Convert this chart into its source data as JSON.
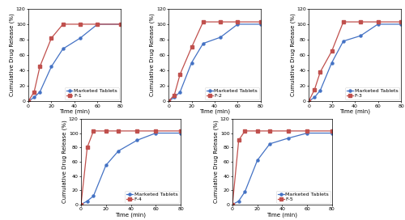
{
  "x": [
    0,
    5,
    10,
    20,
    30,
    45,
    60,
    80
  ],
  "marketed_y": [
    0,
    5,
    12,
    45,
    68,
    82,
    100,
    100
  ],
  "f1_y": [
    0,
    12,
    45,
    82,
    100,
    100,
    100,
    100
  ],
  "f2_y": [
    0,
    8,
    35,
    70,
    103,
    103,
    103,
    103
  ],
  "f2_mkt_y": [
    0,
    5,
    12,
    50,
    75,
    83,
    100,
    100
  ],
  "f3_y": [
    0,
    15,
    38,
    65,
    103,
    103,
    103,
    103
  ],
  "f3_mkt_y": [
    0,
    5,
    14,
    50,
    78,
    85,
    100,
    100
  ],
  "f4_y": [
    0,
    80,
    103,
    103,
    103,
    103,
    103,
    103
  ],
  "f4_mkt_y": [
    0,
    5,
    12,
    55,
    75,
    90,
    100,
    100
  ],
  "f5_y": [
    0,
    90,
    103,
    103,
    103,
    103,
    103,
    103
  ],
  "f5_mkt_y": [
    0,
    5,
    18,
    62,
    85,
    93,
    100,
    100
  ],
  "blue_color": "#4472C4",
  "red_color": "#C0504D",
  "ylabel": "Cumulative Drug Release (%)",
  "xlabel": "Time (min)",
  "xlim": [
    0,
    80
  ],
  "ylim": [
    0,
    120
  ],
  "yticks": [
    0,
    20,
    40,
    60,
    80,
    100,
    120
  ],
  "xticks": [
    0,
    20,
    40,
    60,
    80
  ],
  "marker_blue": "o",
  "marker_red": "s",
  "linewidth": 0.9,
  "markersize": 2.2,
  "legend_fontsize": 4.5,
  "tick_fontsize": 4.5,
  "label_fontsize": 5.0,
  "titles": [
    "F-1",
    "F-2",
    "F-3",
    "F-4",
    "F-5"
  ]
}
